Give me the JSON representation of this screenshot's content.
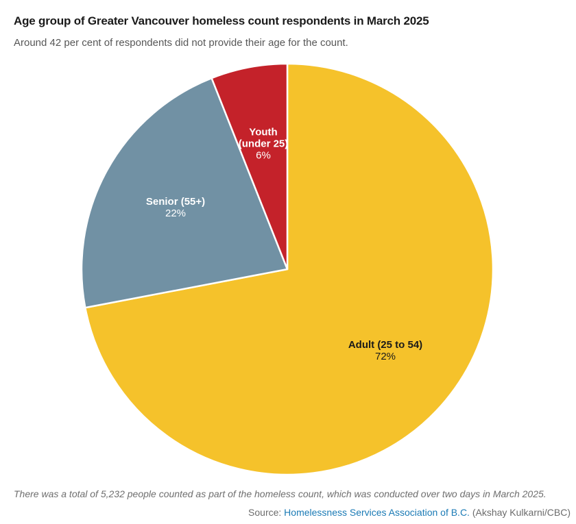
{
  "chart_data": {
    "type": "pie",
    "title": "Age group of Greater Vancouver homeless count respondents in March 2025",
    "subtitle": "Around 42 per cent of respondents did not provide their age for the count.",
    "legend": "none",
    "labels_inside": true,
    "direction": "clockwise",
    "start_angle_deg": 0,
    "total_respondents": 5232,
    "slices": [
      {
        "id": "adult",
        "label": "Adult (25 to 54)",
        "label_lines": [
          "Adult (25 to 54)"
        ],
        "value": 72,
        "value_label": "72%",
        "color": "#F5C22B",
        "text_color": "#1A1A1A"
      },
      {
        "id": "senior",
        "label": "Senior (55+)",
        "label_lines": [
          "Senior (55+)"
        ],
        "value": 22,
        "value_label": "22%",
        "color": "#7191A4",
        "text_color": "#FFFFFF"
      },
      {
        "id": "youth",
        "label": "Youth (under 25)",
        "label_lines": [
          "Youth",
          "(under 25)"
        ],
        "value": 6,
        "value_label": "6%",
        "color": "#C4222A",
        "text_color": "#FFFFFF"
      }
    ]
  },
  "footer": {
    "note": "There was a total of 5,232 people counted as part of the homeless count, which was conducted over two days in March 2025.",
    "source_prefix": "Source: ",
    "source_link_text": "Homelessness Services Association of B.C.",
    "source_suffix": " (Akshay Kulkarni/CBC)"
  },
  "colors": {
    "title": "#1A1A1A",
    "subtitle": "#565656",
    "footnote": "#6E6E6E",
    "source_text": "#6B6B6B",
    "link": "#1A7AB5",
    "slice_divider": "#FFFFFF"
  }
}
